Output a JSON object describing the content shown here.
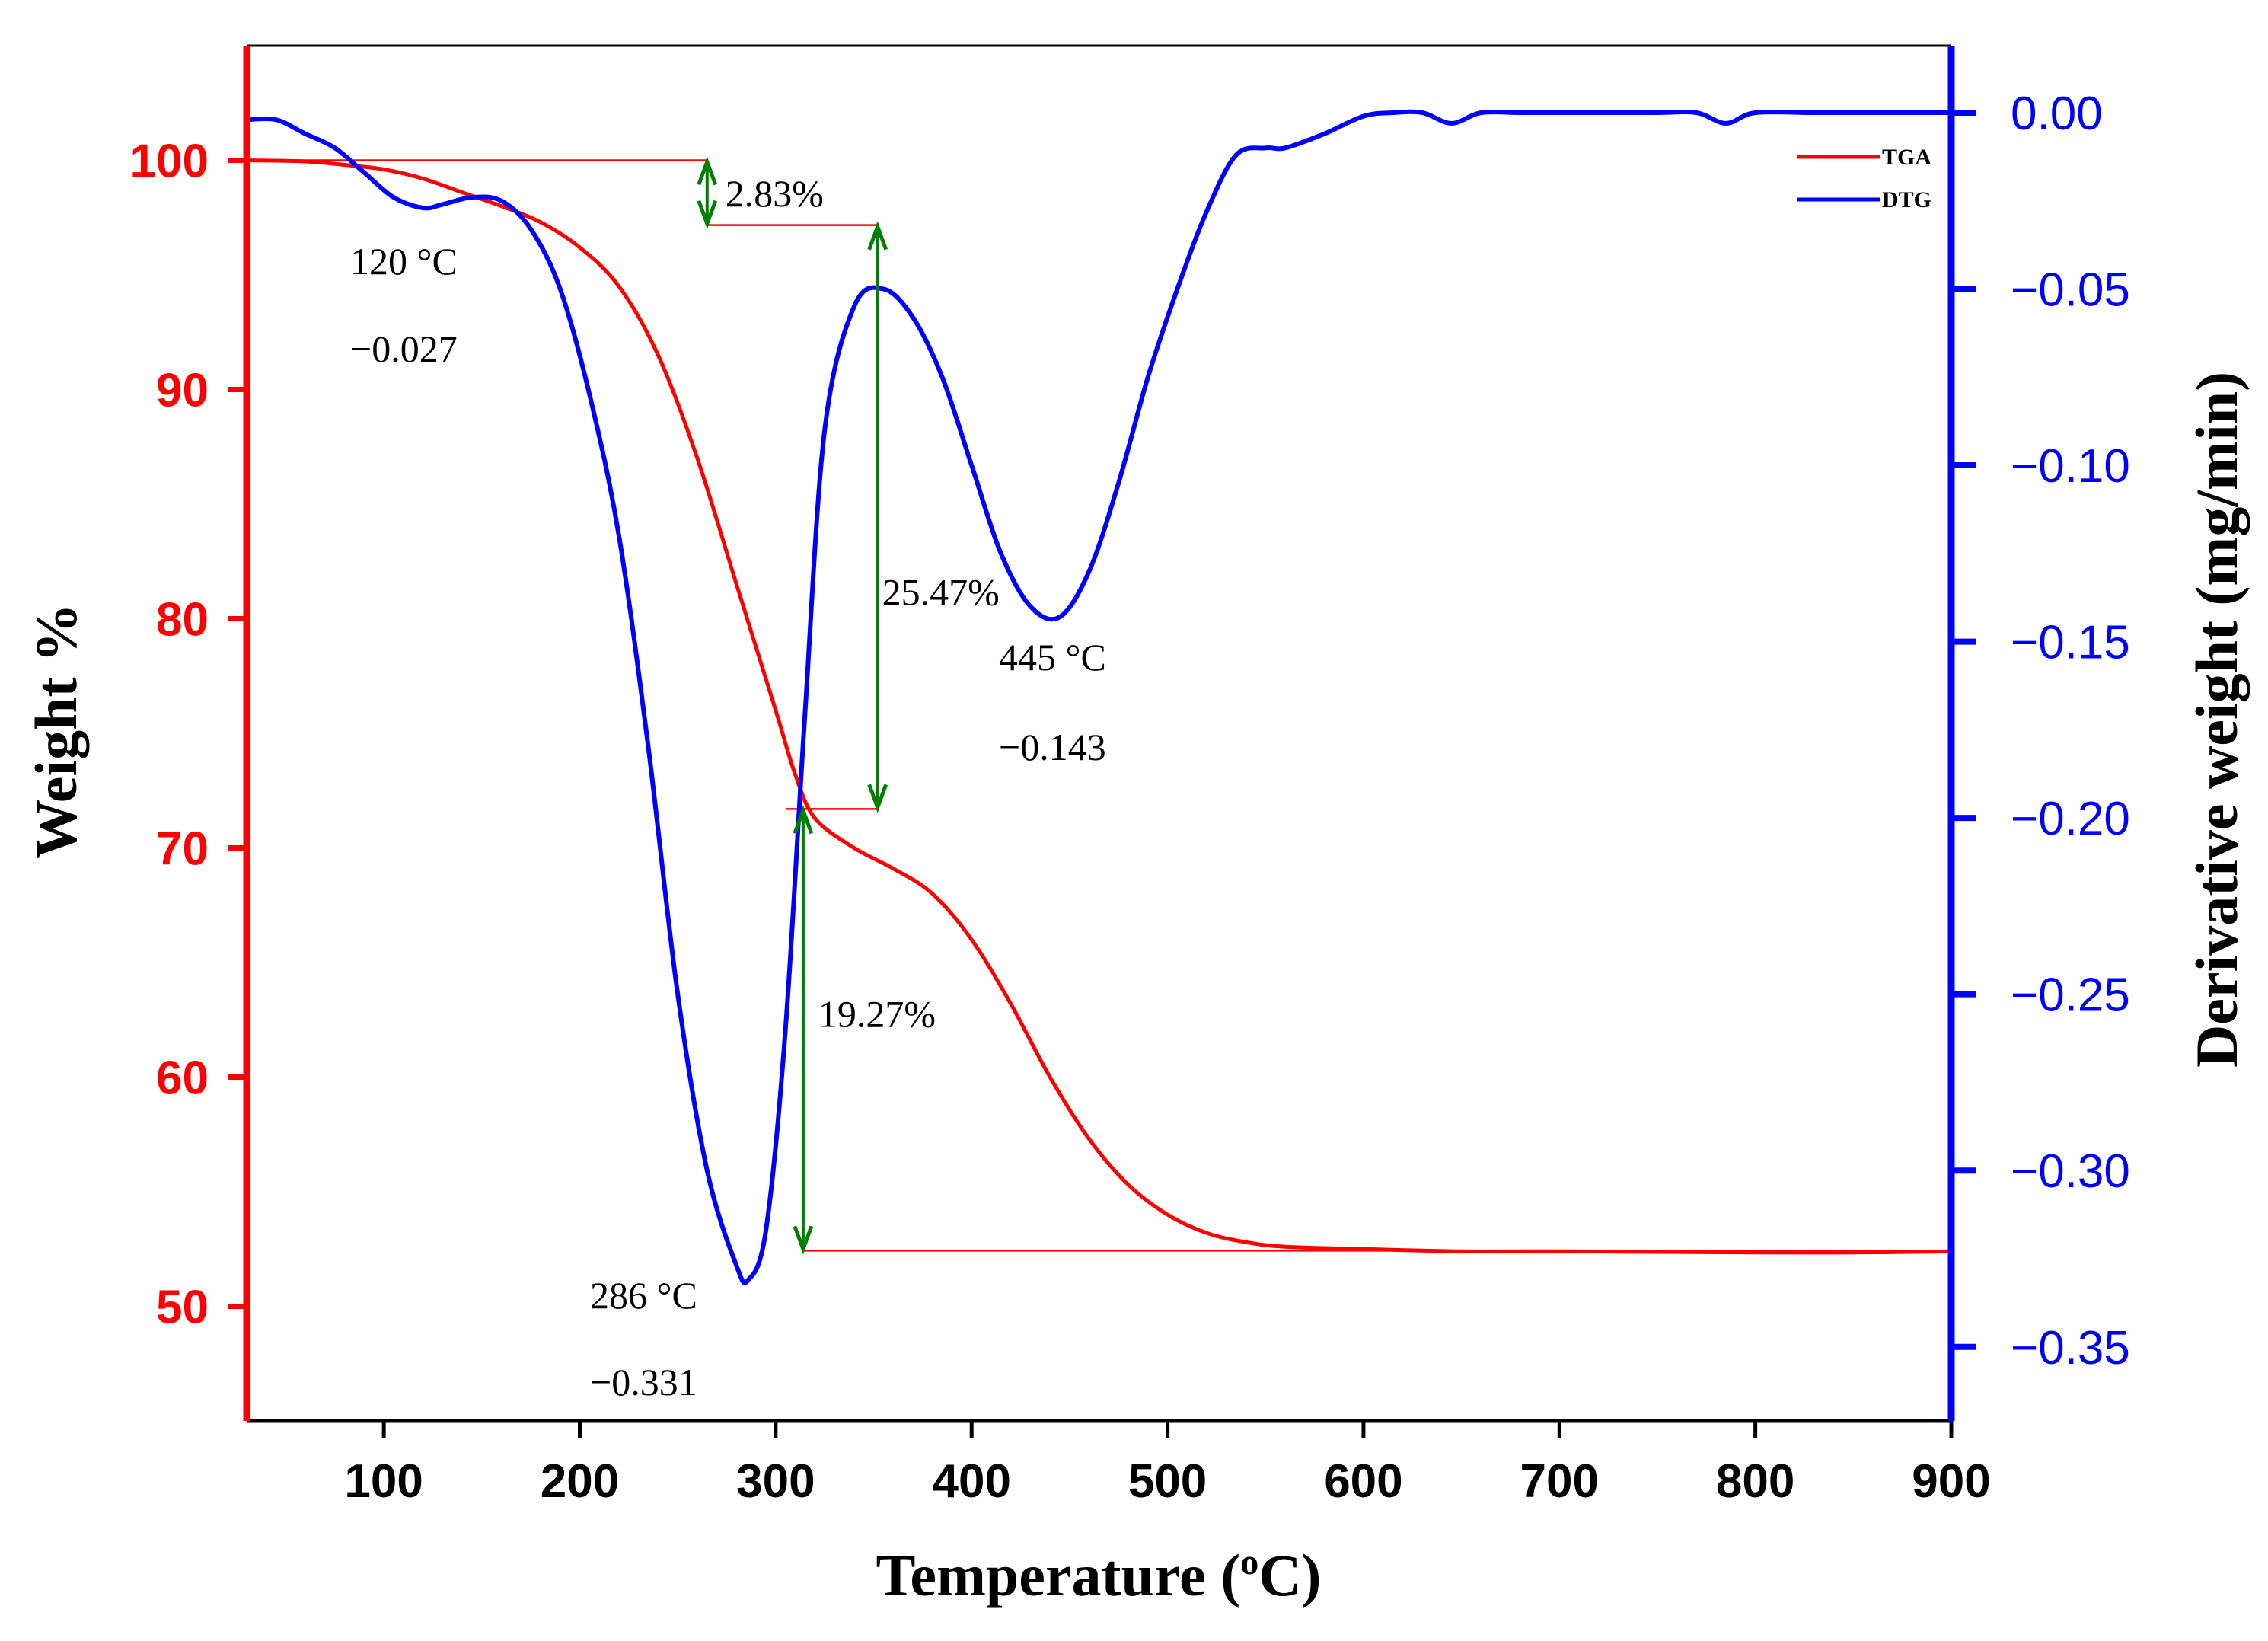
{
  "chart_data": {
    "type": "line",
    "title": "",
    "xlabel": "Temperature (°C)",
    "xlabel_parts": {
      "prefix": "Temperature (",
      "sup": "o",
      "suffix": "C)"
    },
    "ylabel_left": "Weight %",
    "ylabel_right": "Derivative weight (mg/min)",
    "xlim": [
      30,
      900
    ],
    "ylim_left": [
      45,
      105
    ],
    "ylim_right": [
      -0.371,
      0.019
    ],
    "x_ticks": [
      "100",
      "200",
      "300",
      "400",
      "500",
      "600",
      "700",
      "800",
      "900"
    ],
    "y_left_ticks": [
      "50",
      "60",
      "70",
      "80",
      "90",
      "100"
    ],
    "y_right_ticks": [
      "0.00",
      "−0.05",
      "−0.10",
      "−0.15",
      "−0.20",
      "−0.25",
      "−0.30",
      "−0.35"
    ],
    "legend": {
      "position": "top-right",
      "entries": [
        "TGA",
        "DTG"
      ]
    },
    "colors": {
      "tga": "#ff0000",
      "dtg": "#0000ff",
      "annotation_arrow": "#008000",
      "annotation_line": "#ff0000",
      "left_axis": "#ff0000",
      "right_axis": "#0000ff"
    },
    "series": [
      {
        "name": "TGA",
        "axis": "left",
        "x": [
          30,
          60,
          80,
          100,
          120,
          140,
          160,
          180,
          200,
          220,
          240,
          260,
          280,
          300,
          310,
          320,
          340,
          360,
          380,
          400,
          420,
          440,
          460,
          480,
          500,
          520,
          540,
          560,
          600,
          650,
          700,
          800,
          850,
          900
        ],
        "y": [
          100.0,
          99.95,
          99.8,
          99.6,
          99.2,
          98.6,
          98.0,
          97.3,
          96.2,
          94.5,
          91.5,
          87.0,
          81.5,
          76.0,
          73.2,
          71.3,
          70.0,
          69.1,
          68.0,
          66.0,
          63.2,
          60.0,
          57.3,
          55.3,
          54.0,
          53.2,
          52.8,
          52.6,
          52.5,
          52.4,
          52.4,
          52.35,
          52.35,
          52.4
        ]
      },
      {
        "name": "DTG",
        "axis": "right",
        "x": [
          30,
          45,
          60,
          75,
          90,
          105,
          120,
          130,
          145,
          160,
          175,
          190,
          205,
          220,
          235,
          250,
          265,
          280,
          286,
          295,
          305,
          315,
          325,
          340,
          355,
          370,
          385,
          400,
          415,
          430,
          445,
          460,
          475,
          490,
          505,
          520,
          535,
          550,
          560,
          580,
          600,
          615,
          630,
          645,
          660,
          680,
          700,
          720,
          750,
          770,
          785,
          800,
          830,
          860,
          900
        ],
        "y": [
          -0.002,
          -0.002,
          -0.006,
          -0.01,
          -0.017,
          -0.024,
          -0.027,
          -0.026,
          -0.024,
          -0.025,
          -0.033,
          -0.05,
          -0.08,
          -0.12,
          -0.18,
          -0.25,
          -0.3,
          -0.327,
          -0.331,
          -0.317,
          -0.26,
          -0.17,
          -0.09,
          -0.055,
          -0.05,
          -0.058,
          -0.075,
          -0.1,
          -0.125,
          -0.14,
          -0.143,
          -0.13,
          -0.105,
          -0.075,
          -0.05,
          -0.028,
          -0.012,
          -0.01,
          -0.01,
          -0.006,
          -0.001,
          0.0,
          0.0,
          -0.003,
          0.0,
          0.0,
          0.0,
          0.0,
          0.0,
          0.0,
          -0.003,
          0.0,
          0.0,
          0.0,
          0.0
        ]
      }
    ],
    "annotations": [
      {
        "line1": "120 °C",
        "line2": "−0.027",
        "at_x": 120,
        "at_y_right": -0.027
      },
      {
        "line1": "286 °C",
        "line2": "−0.331",
        "at_x": 286,
        "at_y_right": -0.331
      },
      {
        "line1": "445 °C",
        "line2": "−0.143",
        "at_x": 445,
        "at_y_right": -0.143
      }
    ],
    "mass_loss_steps": [
      {
        "label": "2.83%",
        "x": 265,
        "from_weight": 100.0,
        "to_weight": 97.17,
        "guide_from_x": 30,
        "guide_to_x": 265
      },
      {
        "label": "25.47%",
        "x": 352,
        "from_weight": 97.17,
        "to_weight": 71.7,
        "guide_from_x": 265,
        "guide_to_x": 352
      },
      {
        "label": "19.27%",
        "x": 314,
        "from_weight": 71.7,
        "to_weight": 52.43,
        "guide_from_x": 314,
        "guide_to_x": 900
      }
    ]
  }
}
